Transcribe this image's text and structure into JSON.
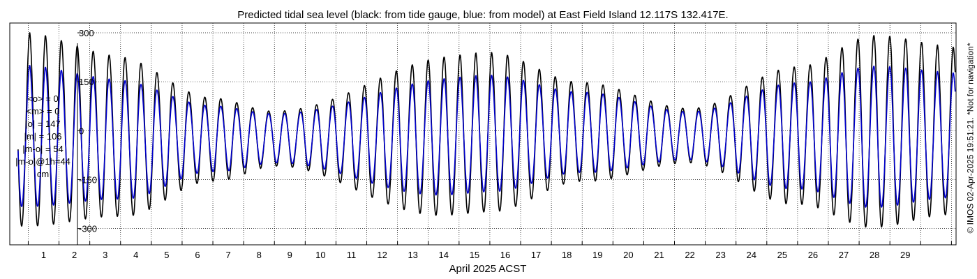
{
  "chart_data": {
    "type": "line",
    "title": "Predicted tidal sea level (black: from tide gauge, blue: from model) at East Field Island 12.117S 132.417E.",
    "xlabel": "April 2025 ACST",
    "ylabel": "",
    "x_ticks": [
      "1",
      "2",
      "3",
      "4",
      "5",
      "6",
      "7",
      "8",
      "9",
      "10",
      "11",
      "12",
      "13",
      "14",
      "15",
      "16",
      "17",
      "18",
      "19",
      "20",
      "21",
      "22",
      "23",
      "24",
      "25",
      "26",
      "27",
      "28",
      "29"
    ],
    "x_range_days": [
      -0.6,
      30.15
    ],
    "y_ticks": [
      -300,
      -150,
      0,
      150,
      300
    ],
    "ylim": [
      -350,
      330
    ],
    "grid": true,
    "series": [
      {
        "color": "#000000",
        "daily_range": [
          {
            "day": 0.0,
            "high": 300,
            "low": -330
          },
          {
            "day": 3.0,
            "high": 260,
            "low": -290
          },
          {
            "day": 6.0,
            "high": 130,
            "low": -160
          },
          {
            "day": 8.0,
            "high": 80,
            "low": -110
          },
          {
            "day": 13.5,
            "high": 240,
            "low": -290
          },
          {
            "day": 15.0,
            "high": 240,
            "low": -280
          },
          {
            "day": 18.0,
            "high": 150,
            "low": -170
          },
          {
            "day": 21.5,
            "high": 70,
            "low": -100
          },
          {
            "day": 25.0,
            "high": 200,
            "low": -240
          },
          {
            "day": 27.5,
            "high": 295,
            "low": -330
          },
          {
            "day": 30.0,
            "high": 260,
            "low": -290
          }
        ]
      },
      {
        "color": "#0000cc",
        "daily_range": [
          {
            "day": 0.0,
            "high": 200,
            "low": -260
          },
          {
            "day": 3.0,
            "high": 180,
            "low": -230
          },
          {
            "day": 6.0,
            "high": 100,
            "low": -130
          },
          {
            "day": 8.0,
            "high": 70,
            "low": -100
          },
          {
            "day": 13.5,
            "high": 170,
            "low": -220
          },
          {
            "day": 15.0,
            "high": 170,
            "low": -210
          },
          {
            "day": 18.0,
            "high": 120,
            "low": -140
          },
          {
            "day": 21.5,
            "high": 60,
            "low": -90
          },
          {
            "day": 25.0,
            "high": 150,
            "low": -190
          },
          {
            "day": 27.5,
            "high": 200,
            "low": -260
          },
          {
            "day": 30.0,
            "high": 180,
            "low": -230
          }
        ]
      }
    ]
  },
  "stats": {
    "o_mean": "<o> = 0",
    "m_mean": "<m> = 0",
    "o_abs": "|o| = 147",
    "m_abs": "|m| = 106",
    "mo_abs": "|m-o| = 54",
    "mo_1h": "|m-o|@1h=44",
    "unit": "cm"
  },
  "credit": "© IMOS 02-Apr-2025 19:51:21. *Not for navigation*"
}
